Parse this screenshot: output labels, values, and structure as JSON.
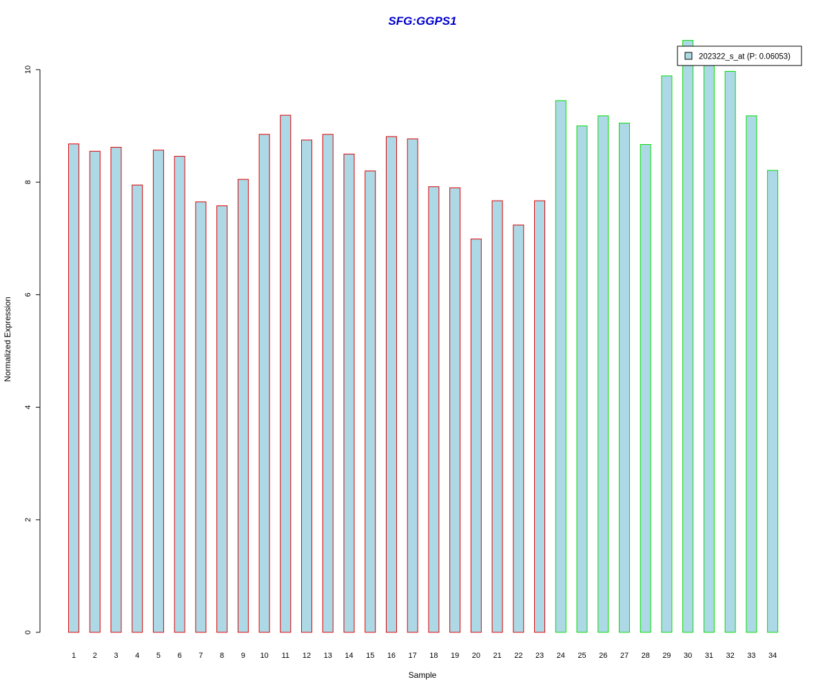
{
  "chart_data": {
    "type": "bar",
    "title": "SFG:GGPS1",
    "xlabel": "Sample",
    "ylabel": "Normalized Expression",
    "ylim": [
      0,
      10
    ],
    "yticks": [
      0,
      2,
      4,
      6,
      8,
      10
    ],
    "categories": [
      "1",
      "2",
      "3",
      "4",
      "5",
      "6",
      "7",
      "8",
      "9",
      "10",
      "11",
      "12",
      "13",
      "14",
      "15",
      "16",
      "17",
      "18",
      "19",
      "20",
      "21",
      "22",
      "23",
      "24",
      "25",
      "26",
      "27",
      "28",
      "29",
      "30",
      "31",
      "32",
      "33",
      "34"
    ],
    "series": [
      {
        "name": "202322_s_at (P: 0.06053)",
        "values": [
          8.68,
          8.55,
          8.62,
          7.95,
          8.57,
          8.46,
          7.65,
          7.58,
          8.05,
          8.85,
          9.19,
          8.75,
          8.85,
          8.5,
          8.2,
          8.81,
          8.77,
          7.92,
          7.9,
          6.99,
          7.67,
          7.24,
          7.67,
          9.45,
          9.0,
          9.18,
          9.05,
          8.67,
          9.89,
          10.52,
          10.1,
          9.97,
          9.18,
          8.21
        ]
      }
    ],
    "groups": [
      {
        "samples": "1-23",
        "border_color": "#dd0000"
      },
      {
        "samples": "24-34",
        "border_color": "#00dd00"
      }
    ],
    "bar_fill_color": "#add8e6",
    "title_color": "#0000cc",
    "grid": false,
    "legend_position": "top-right"
  }
}
